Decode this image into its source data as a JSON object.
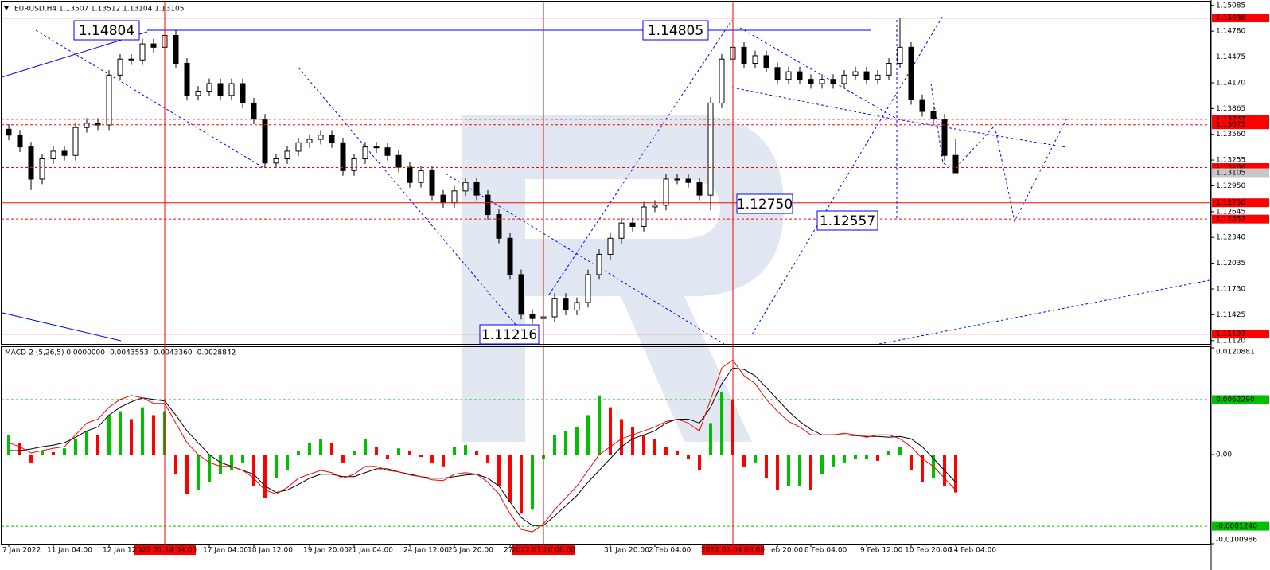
{
  "chart_data": [
    {
      "type": "candlestick",
      "title": "EURUSD,H4 1.13507 1.13512 1.13104 1.13105",
      "categories": [
        "7 Jan 2022",
        null,
        null,
        null,
        "11 Jan 04:00",
        null,
        null,
        null,
        null,
        "12 Jan 12",
        null,
        null,
        null,
        null,
        "2022.01.14 04:00",
        null,
        null,
        null,
        "17 Jan 04:00",
        null,
        null,
        null,
        "18 Jan 12:00",
        null,
        null,
        null,
        null,
        "19 Jan 20:00",
        null,
        null,
        null,
        "21 Jan 04:00",
        null,
        null,
        null,
        null,
        "24 Jan 12:00",
        null,
        null,
        null,
        "25 Jan 20:00",
        null,
        null,
        null,
        null,
        "27 J",
        null,
        null,
        "2022.01.28 08:00",
        null,
        null,
        null,
        null,
        null,
        "31 Jan 20:00",
        null,
        null,
        null,
        "2 Feb 04:00",
        null,
        null,
        null,
        null,
        null,
        null,
        "2022.02.04 08:00",
        null,
        null,
        null,
        "eb 20:00",
        null,
        null,
        "8 Feb 04:00",
        null,
        null,
        null,
        null,
        "9 Feb 12:00",
        null,
        null,
        null,
        "10 Feb 20:00",
        null,
        null,
        null,
        "14 Feb 04:00"
      ],
      "open": [
        1.1362,
        1.1355,
        1.1341,
        1.1303,
        1.1327,
        1.1336,
        1.1331,
        1.1364,
        1.1369,
        1.1367,
        1.1426,
        1.1445,
        1.1444,
        1.1463,
        1.1459,
        1.1473,
        1.144,
        1.1402,
        1.1407,
        1.1416,
        1.1402,
        1.1416,
        1.1393,
        1.1374,
        1.1322,
        1.1327,
        1.1336,
        1.1346,
        1.135,
        1.1355,
        1.1346,
        1.1313,
        1.1327,
        1.1341,
        1.134,
        1.1331,
        1.1317,
        1.1299,
        1.1313,
        1.1284,
        1.1275,
        1.1289,
        1.1299,
        1.1284,
        1.1261,
        1.1233,
        1.119,
        1.1143,
        1.1138,
        1.114,
        1.1162,
        1.1148,
        1.1157,
        1.119,
        1.1214,
        1.1233,
        1.1251,
        1.1247,
        1.127,
        1.1272,
        1.1303,
        1.1303,
        1.1299,
        1.1284,
        1.1393,
        1.1445,
        1.1459,
        1.144,
        1.1449,
        1.1435,
        1.1421,
        1.143,
        1.1421,
        1.1416,
        1.1421,
        1.1416,
        1.1426,
        1.143,
        1.1421,
        1.1426,
        1.144,
        1.1459,
        1.1397,
        1.1383,
        1.1374,
        1.1331
      ],
      "high": [
        1.1368,
        1.1361,
        1.1347,
        1.1333,
        1.1342,
        1.1342,
        1.137,
        1.1375,
        1.1375,
        1.1432,
        1.1451,
        1.1451,
        1.1469,
        1.1469,
        1.14804,
        1.1479,
        1.1446,
        1.1413,
        1.1422,
        1.1422,
        1.1422,
        1.1422,
        1.1399,
        1.138,
        1.1333,
        1.1342,
        1.1352,
        1.1356,
        1.1361,
        1.1361,
        1.1352,
        1.1333,
        1.1347,
        1.1347,
        1.1346,
        1.1337,
        1.1323,
        1.1319,
        1.1319,
        1.129,
        1.1295,
        1.1305,
        1.1305,
        1.129,
        1.1267,
        1.1239,
        1.1196,
        1.1149,
        1.1146,
        1.1168,
        1.1168,
        1.1163,
        1.1196,
        1.122,
        1.1239,
        1.1257,
        1.1257,
        1.1276,
        1.1278,
        1.1309,
        1.1309,
        1.1309,
        1.1305,
        1.14,
        1.1451,
        1.14805,
        1.1465,
        1.1455,
        1.1455,
        1.1441,
        1.1436,
        1.1436,
        1.1427,
        1.1427,
        1.1427,
        1.1432,
        1.1436,
        1.1436,
        1.1432,
        1.1446,
        1.14936,
        1.1465,
        1.1403,
        1.1389,
        1.138,
        1.1351
      ],
      "low": [
        1.1349,
        1.1335,
        1.129,
        1.1297,
        1.1321,
        1.1325,
        1.1325,
        1.1358,
        1.1361,
        1.1361,
        1.142,
        1.1438,
        1.1438,
        1.1453,
        1.1453,
        1.1434,
        1.1396,
        1.1396,
        1.1401,
        1.1396,
        1.1396,
        1.1387,
        1.1368,
        1.1316,
        1.1316,
        1.1321,
        1.133,
        1.134,
        1.1344,
        1.134,
        1.1307,
        1.1307,
        1.1321,
        1.1334,
        1.1325,
        1.1311,
        1.1293,
        1.1293,
        1.1278,
        1.1269,
        1.1269,
        1.1283,
        1.1278,
        1.1255,
        1.1227,
        1.1184,
        1.1137,
        1.1132,
        1.11216,
        1.1134,
        1.1142,
        1.1142,
        1.1151,
        1.1184,
        1.1208,
        1.1227,
        1.1241,
        1.1241,
        1.1264,
        1.1266,
        1.1297,
        1.1293,
        1.1278,
        1.1266,
        1.1387,
        1.1439,
        1.1434,
        1.1434,
        1.1429,
        1.1415,
        1.1415,
        1.1415,
        1.141,
        1.141,
        1.141,
        1.141,
        1.142,
        1.1415,
        1.1415,
        1.142,
        1.1434,
        1.1391,
        1.1377,
        1.1368,
        1.1325,
        1.13104
      ],
      "close": [
        1.1355,
        1.1341,
        1.1303,
        1.1327,
        1.1336,
        1.1331,
        1.1364,
        1.1369,
        1.1367,
        1.1426,
        1.1445,
        1.1444,
        1.1463,
        1.1459,
        1.1473,
        1.144,
        1.1402,
        1.1407,
        1.1416,
        1.1402,
        1.1416,
        1.1393,
        1.1374,
        1.1322,
        1.1327,
        1.1336,
        1.1346,
        1.135,
        1.1355,
        1.1346,
        1.1313,
        1.1327,
        1.1341,
        1.134,
        1.1331,
        1.1317,
        1.1299,
        1.1313,
        1.1284,
        1.1275,
        1.1289,
        1.1299,
        1.1284,
        1.1261,
        1.1233,
        1.119,
        1.1143,
        1.1138,
        1.114,
        1.1162,
        1.1148,
        1.1157,
        1.119,
        1.1214,
        1.1233,
        1.1251,
        1.1247,
        1.127,
        1.1272,
        1.1303,
        1.1303,
        1.1299,
        1.1284,
        1.1393,
        1.1445,
        1.1459,
        1.144,
        1.1449,
        1.1435,
        1.1421,
        1.143,
        1.1421,
        1.1416,
        1.1421,
        1.1416,
        1.1426,
        1.143,
        1.1421,
        1.1426,
        1.144,
        1.1459,
        1.1397,
        1.1383,
        1.1374,
        1.1331,
        1.13105
      ],
      "up_color": "#ffffff",
      "down_color": "#000000",
      "ylim": [
        1.1108,
        1.1513
      ],
      "yticks": [
        1.15085,
        {
          "value": 1.1478,
          "label": "1.14780"
        },
        1.14475,
        {
          "value": 1.1417,
          "label": "1.14170"
        },
        1.13865,
        {
          "value": 1.1356,
          "label": "1.13560"
        },
        1.13255,
        {
          "value": 1.1295,
          "label": "1.12950"
        },
        1.12645,
        {
          "value": 1.1234,
          "label": "1.12340"
        },
        1.12035,
        {
          "value": 1.1173,
          "label": "1.11730"
        },
        1.11425,
        {
          "value": 1.1112,
          "label": "1.11120"
        }
      ],
      "levels": [
        {
          "value": 1.14936,
          "line": "solid",
          "color": "#ff0000"
        },
        {
          "value": 1.13737,
          "line": "dashed",
          "color": "#ff0000"
        },
        {
          "value": 1.13673,
          "line": "dashed",
          "color": "#ff0000"
        },
        {
          "value": 1.13166,
          "line": "dashed",
          "color": "#ff0000"
        },
        {
          "value": 1.13105,
          "line": "none",
          "color": "#c8c8c8"
        },
        {
          "value": 1.1275,
          "label": "1.12750",
          "line": "solid",
          "color": "#ff0000"
        },
        {
          "value": 1.12557,
          "line": "dashed",
          "color": "#ff0000"
        },
        {
          "value": 1.11197,
          "line": "solid",
          "color": "#ff0000"
        }
      ],
      "annotations": [
        "1.14804",
        "1.14805",
        "1.12750",
        "1.12557",
        "1.11216"
      ],
      "vlines": [
        14,
        48,
        65
      ]
    },
    {
      "type": "macd",
      "title": "MACD-2 (5,26,5) 0.0000000 -0.0043553 -0.0043360 -0.0028842",
      "values": [
        0.00223,
        0.00134,
        -0.00089,
        0.00045,
        0.00027,
        0.00071,
        0.00179,
        0.00268,
        0.00223,
        0.00447,
        0.00491,
        0.00402,
        0.00536,
        0.00447,
        0.00491,
        -0.00223,
        -0.00447,
        -0.00402,
        -0.00313,
        -0.00223,
        -0.00179,
        -0.00089,
        -0.00357,
        -0.00491,
        -0.00268,
        -0.00179,
        0.00045,
        0.00134,
        0.00179,
        0.00134,
        -0.00089,
        0.00045,
        0.00179,
        0.00089,
        -0.00045,
        0.00071,
        0.00045,
        -0.00027,
        -0.00089,
        -0.00134,
        0.00089,
        0.00107,
        0.00045,
        -0.00089,
        -0.00357,
        -0.00536,
        -0.0067,
        -0.00625,
        -0.00045,
        0.00223,
        0.00268,
        0.00313,
        0.00447,
        0.0067,
        0.00536,
        0.00402,
        0.00313,
        0.00223,
        0.00179,
        0.00089,
        0.00045,
        -0.00045,
        -0.00179,
        0.00357,
        0.00714,
        0.00625,
        -0.00134,
        -0.00089,
        -0.00268,
        -0.00402,
        -0.00357,
        -0.00357,
        -0.00402,
        -0.00223,
        -0.00134,
        -0.00089,
        -0.00045,
        -0.00045,
        -0.00071,
        0.00045,
        0.00089,
        -0.00179,
        -0.00313,
        -0.00268,
        -0.00357,
        -0.00429
      ],
      "up_color": "#00c000",
      "down_color": "#ff0000",
      "lines": [
        {
          "color": "#000000",
          "values": [
            0.00045,
            0.00045,
            0.00063,
            0.00089,
            0.00107,
            0.00134,
            0.00196,
            0.00268,
            0.00313,
            0.00447,
            0.00536,
            0.00598,
            0.00643,
            0.00625,
            0.00607,
            0.00447,
            0.00268,
            0.00134,
            0,
            -0.00089,
            -0.00134,
            -0.00179,
            -0.00223,
            -0.00357,
            -0.00429,
            -0.00402,
            -0.00339,
            -0.00268,
            -0.00223,
            -0.00223,
            -0.0025,
            -0.0025,
            -0.00205,
            -0.00161,
            -0.00161,
            -0.00196,
            -0.00223,
            -0.0025,
            -0.00268,
            -0.00268,
            -0.0025,
            -0.00232,
            -0.00223,
            -0.00268,
            -0.00357,
            -0.00536,
            -0.00714,
            -0.00804,
            -0.00804,
            -0.00697,
            -0.0058,
            -0.00464,
            -0.00313,
            -0.00179,
            -0.00045,
            0.00089,
            0.00179,
            0.00223,
            0.00268,
            0.00357,
            0.00402,
            0.00402,
            0.00357,
            0.00536,
            0.00804,
            0.00982,
            0.00964,
            0.00893,
            0.00759,
            0.00625,
            0.00491,
            0.00375,
            0.00286,
            0.00223,
            0.00223,
            0.00223,
            0.00214,
            0.00205,
            0.00205,
            0.00196,
            0.00205,
            0.00179,
            0.00089,
            -0.00045,
            -0.00179,
            -0.00313
          ]
        },
        {
          "color": "#ff0000",
          "values": [
            0.00134,
            0.00089,
            0.00018,
            0.00045,
            0.00071,
            0.00089,
            0.00223,
            0.00357,
            0.00402,
            0.00536,
            0.00625,
            0.0067,
            0.00643,
            0.0058,
            0.0058,
            0.00357,
            0.00134,
            0,
            -0.00089,
            -0.00134,
            -0.00134,
            -0.00179,
            -0.00268,
            -0.00402,
            -0.00447,
            -0.00375,
            -0.00268,
            -0.00223,
            -0.00179,
            -0.00205,
            -0.00268,
            -0.00223,
            -0.00134,
            -0.00134,
            -0.00179,
            -0.00196,
            -0.00232,
            -0.0025,
            -0.00286,
            -0.00295,
            -0.00223,
            -0.00205,
            -0.00223,
            -0.00313,
            -0.00447,
            -0.0067,
            -0.00848,
            -0.00875,
            -0.00786,
            -0.00625,
            -0.00491,
            -0.00357,
            -0.00179,
            0,
            0.00089,
            0.00179,
            0.00223,
            0.00268,
            0.00313,
            0.00375,
            0.00402,
            0.00357,
            0.00268,
            0.00625,
            0.00982,
            0.01072,
            0.00893,
            0.00804,
            0.00625,
            0.00491,
            0.00375,
            0.00313,
            0.00223,
            0.00223,
            0.00223,
            0.00241,
            0.00223,
            0.00196,
            0.00223,
            0.00223,
            0.00179,
            0.00089,
            -0.00045,
            -0.00134,
            -0.00268,
            -0.00402
          ]
        }
      ],
      "ylim": [
        -0.0100986,
        0.0120881
      ],
      "yticks": [
        0.0120881,
        {
          "value": 0,
          "label": "0.00"
        },
        -0.0100986
      ],
      "levels": [
        {
          "value": 0.006229,
          "label": "0.0062290",
          "color": "#00c000"
        },
        {
          "value": -0.008124,
          "label": "-0.0081240",
          "color": "#00c000"
        }
      ]
    }
  ]
}
